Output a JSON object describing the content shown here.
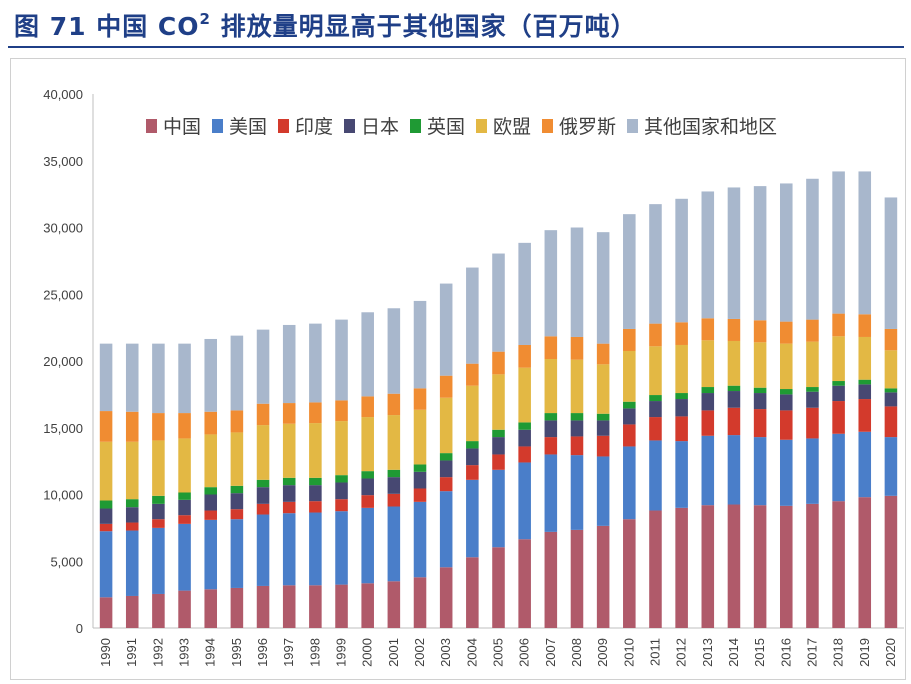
{
  "page_title": {
    "prefix": "图 71  中国 CO",
    "superscript": "2",
    "suffix": " 排放量明显高于其他国家（百万吨）"
  },
  "chart_data": {
    "type": "bar",
    "stacked": true,
    "title": "图 71 中国 CO2 排放量明显高于其他国家（百万吨）",
    "xlabel": "",
    "ylabel": "",
    "ylim": [
      0,
      40000
    ],
    "yticks": [
      "0",
      "5,000",
      "10,000",
      "15,000",
      "20,000",
      "25,000",
      "30,000",
      "35,000",
      "40,000"
    ],
    "legend_position": "top-right",
    "grid": false,
    "categories": [
      "1990",
      "1991",
      "1992",
      "1993",
      "1994",
      "1995",
      "1996",
      "1997",
      "1998",
      "1999",
      "2000",
      "2001",
      "2002",
      "2003",
      "2004",
      "2005",
      "2006",
      "2007",
      "2008",
      "2009",
      "2010",
      "2011",
      "2012",
      "2013",
      "2014",
      "2015",
      "2016",
      "2017",
      "2018",
      "2019",
      "2020"
    ],
    "series": [
      {
        "name": "中国",
        "color": "#b05a6a",
        "values": [
          2300,
          2400,
          2550,
          2800,
          2900,
          3000,
          3150,
          3200,
          3200,
          3250,
          3350,
          3500,
          3800,
          4550,
          5300,
          6050,
          6650,
          7200,
          7350,
          7650,
          8150,
          8800,
          9000,
          9200,
          9250,
          9200,
          9150,
          9300,
          9500,
          9800,
          9900
        ]
      },
      {
        "name": "美国",
        "color": "#4a7ec9",
        "values": [
          4950,
          4900,
          4950,
          5000,
          5200,
          5150,
          5350,
          5400,
          5450,
          5500,
          5650,
          5600,
          5650,
          5700,
          5800,
          5800,
          5750,
          5800,
          5600,
          5200,
          5450,
          5250,
          5000,
          5200,
          5200,
          5100,
          4950,
          4900,
          5050,
          4900,
          4400
        ]
      },
      {
        "name": "印度",
        "color": "#d33a2c",
        "values": [
          550,
          600,
          650,
          650,
          700,
          750,
          800,
          850,
          850,
          900,
          950,
          950,
          1000,
          1050,
          1100,
          1150,
          1200,
          1300,
          1400,
          1550,
          1650,
          1750,
          1850,
          1900,
          2050,
          2100,
          2200,
          2300,
          2450,
          2450,
          2300
        ]
      },
      {
        "name": "日本",
        "color": "#474872",
        "values": [
          1150,
          1150,
          1150,
          1150,
          1200,
          1200,
          1250,
          1250,
          1200,
          1250,
          1250,
          1250,
          1250,
          1250,
          1250,
          1300,
          1250,
          1250,
          1200,
          1150,
          1200,
          1200,
          1300,
          1300,
          1250,
          1200,
          1200,
          1200,
          1150,
          1100,
          1050
        ]
      },
      {
        "name": "英国",
        "color": "#1f9a34",
        "values": [
          600,
          600,
          600,
          550,
          550,
          550,
          550,
          550,
          550,
          550,
          550,
          550,
          550,
          550,
          550,
          550,
          550,
          550,
          550,
          500,
          500,
          450,
          450,
          450,
          400,
          400,
          400,
          350,
          350,
          350,
          300
        ]
      },
      {
        "name": "欧盟",
        "color": "#e3b844",
        "values": [
          4400,
          4300,
          4150,
          4050,
          3950,
          4000,
          4100,
          4050,
          4100,
          4050,
          4050,
          4100,
          4100,
          4150,
          4150,
          4150,
          4100,
          4050,
          4000,
          3700,
          3800,
          3650,
          3600,
          3500,
          3350,
          3400,
          3400,
          3400,
          3350,
          3200,
          2850
        ]
      },
      {
        "name": "俄罗斯",
        "color": "#f08c32",
        "values": [
          2300,
          2250,
          2050,
          1900,
          1700,
          1650,
          1600,
          1550,
          1550,
          1550,
          1550,
          1600,
          1600,
          1650,
          1650,
          1700,
          1700,
          1700,
          1700,
          1550,
          1650,
          1700,
          1700,
          1650,
          1650,
          1650,
          1650,
          1650,
          1700,
          1700,
          1600
        ]
      },
      {
        "name": "其他国家和地区",
        "color": "#a8b7cc",
        "values": [
          5050,
          5100,
          5200,
          5200,
          5450,
          5600,
          5550,
          5850,
          5900,
          6050,
          6300,
          6400,
          6550,
          6900,
          7200,
          7350,
          7650,
          7950,
          8200,
          8350,
          8600,
          8950,
          9250,
          9500,
          9850,
          10050,
          10350,
          10550,
          10650,
          10700,
          9850
        ]
      }
    ]
  }
}
